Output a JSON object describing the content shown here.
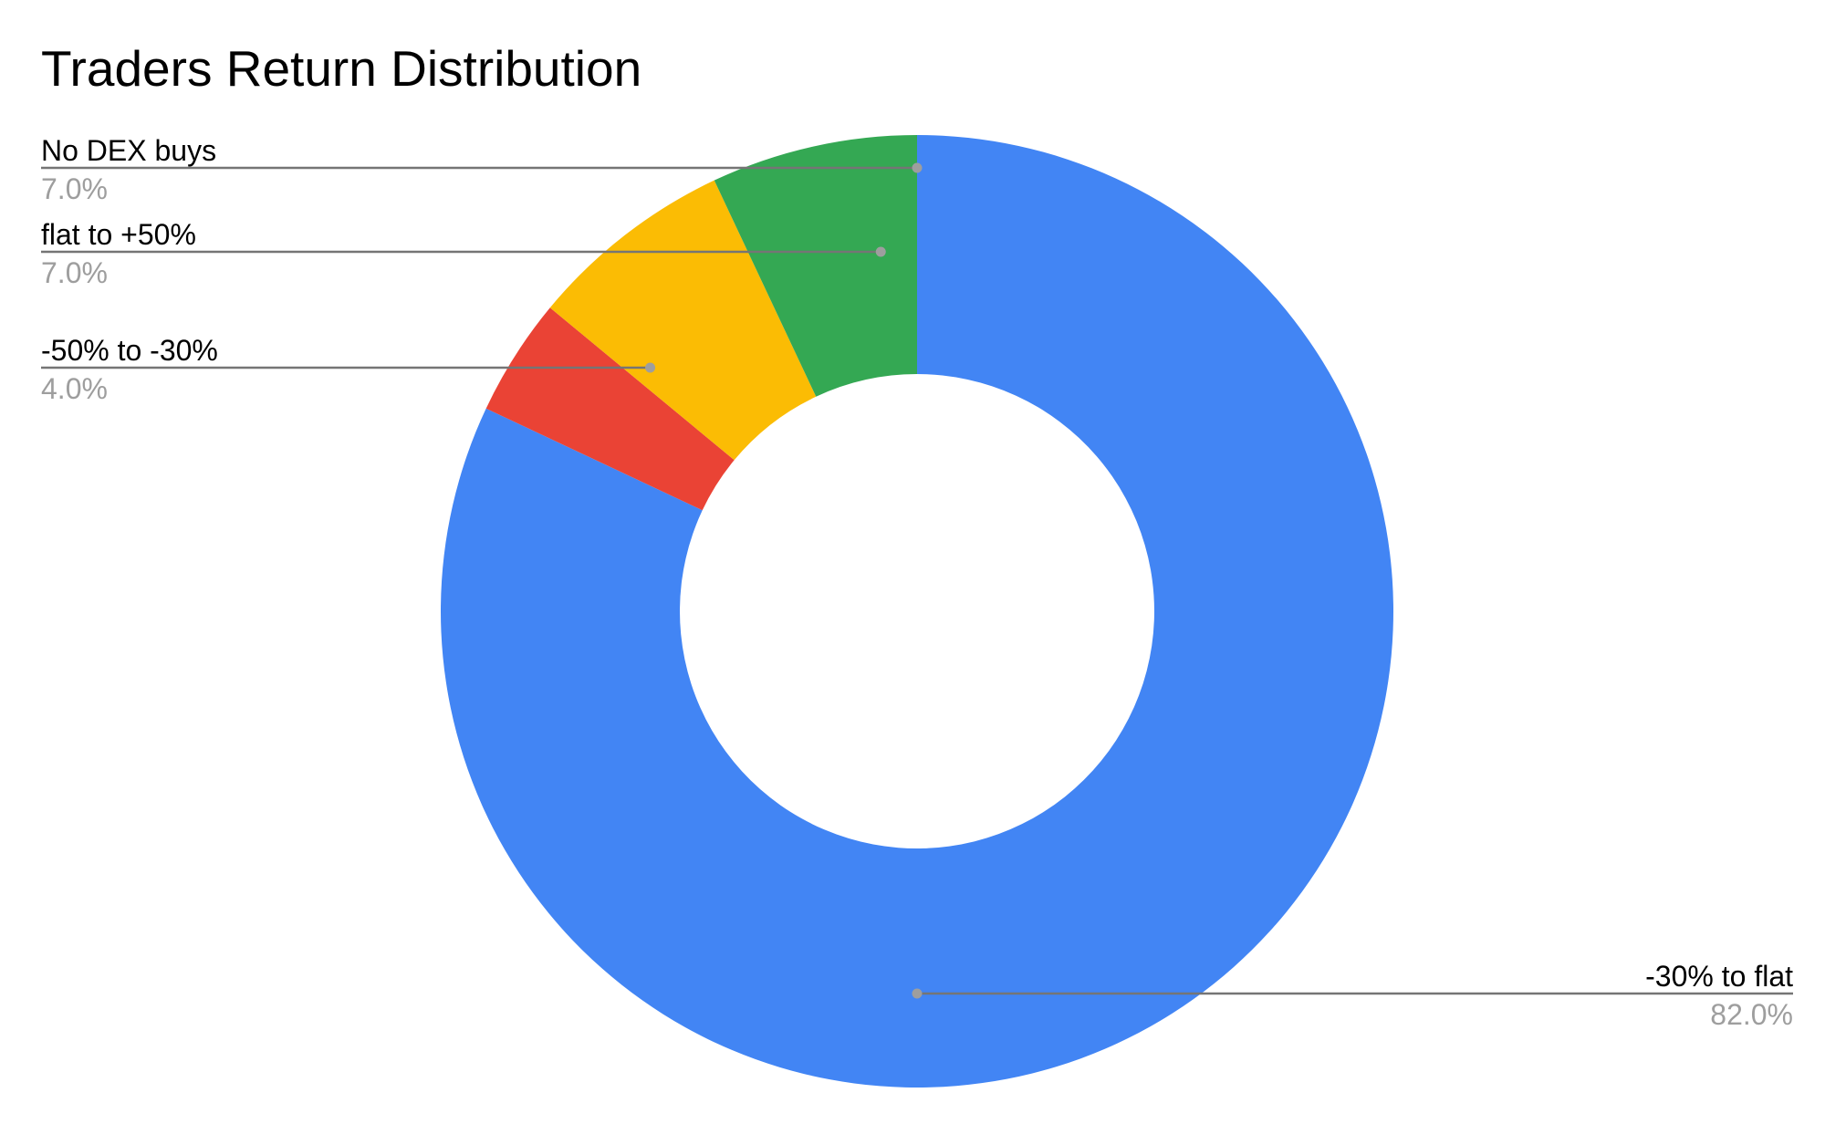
{
  "chart_data": {
    "type": "pie",
    "style": "donut",
    "title": "Traders Return Distribution",
    "unit": "%",
    "slices": [
      {
        "label": "-30% to flat",
        "value": 82.0,
        "display": "82.0%",
        "color": "#4285f4"
      },
      {
        "label": "-50% to -30%",
        "value": 4.0,
        "display": "4.0%",
        "color": "#ea4335"
      },
      {
        "label": "flat to +50%",
        "value": 7.0,
        "display": "7.0%",
        "color": "#fbbc04"
      },
      {
        "label": "No DEX buys",
        "value": 7.0,
        "display": "7.0%",
        "color": "#34a853"
      }
    ],
    "start_angle": "12 o'clock",
    "direction": "clockwise",
    "legend": "none",
    "labels": "outside with leader lines"
  }
}
